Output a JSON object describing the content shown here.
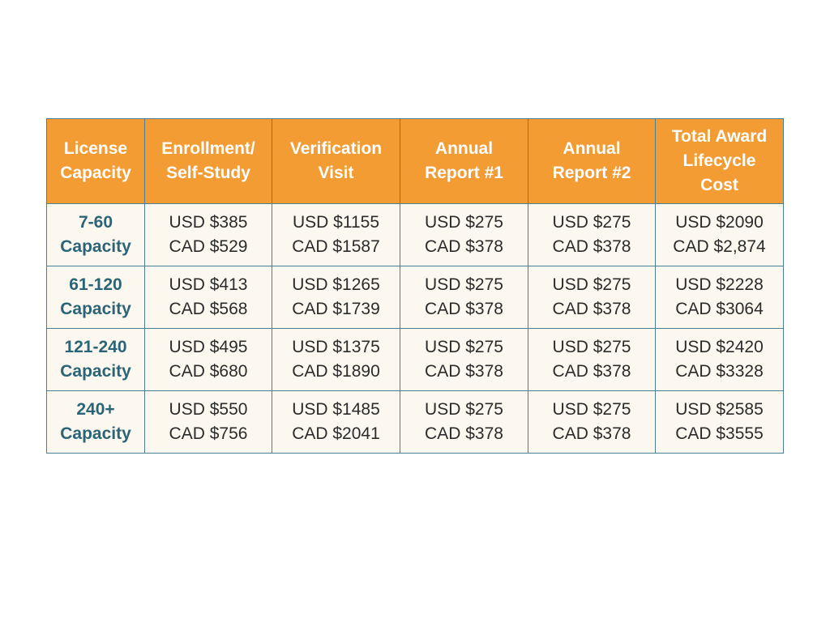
{
  "table": {
    "headers": [
      [
        "License",
        "Capacity"
      ],
      [
        "Enrollment/",
        "Self-Study"
      ],
      [
        "Verification",
        "Visit"
      ],
      [
        "Annual",
        "Report #1"
      ],
      [
        "Annual",
        "Report #2"
      ],
      [
        "Total Award",
        "Lifecycle",
        "Cost"
      ]
    ],
    "rows": [
      {
        "label": [
          "7-60",
          "Capacity"
        ],
        "cells": [
          [
            "USD $385",
            "CAD $529"
          ],
          [
            "USD $1155",
            "CAD $1587"
          ],
          [
            "USD $275",
            "CAD $378"
          ],
          [
            "USD $275",
            "CAD $378"
          ],
          [
            "USD $2090",
            "CAD $2,874"
          ]
        ]
      },
      {
        "label": [
          "61-120",
          "Capacity"
        ],
        "cells": [
          [
            "USD $413",
            "CAD $568"
          ],
          [
            "USD $1265",
            "CAD $1739"
          ],
          [
            "USD $275",
            "CAD $378"
          ],
          [
            "USD $275",
            "CAD $378"
          ],
          [
            "USD $2228",
            "CAD $3064"
          ]
        ]
      },
      {
        "label": [
          "121-240",
          "Capacity"
        ],
        "cells": [
          [
            "USD $495",
            "CAD $680"
          ],
          [
            "USD $1375",
            "CAD $1890"
          ],
          [
            "USD $275",
            "CAD $378"
          ],
          [
            "USD $275",
            "CAD $378"
          ],
          [
            "USD $2420",
            "CAD $3328"
          ]
        ]
      },
      {
        "label": [
          "240+",
          "Capacity"
        ],
        "cells": [
          [
            "USD $550",
            "CAD $756"
          ],
          [
            "USD $1485",
            "CAD $2041"
          ],
          [
            "USD $275",
            "CAD $378"
          ],
          [
            "USD $275",
            "CAD $378"
          ],
          [
            "USD $2585",
            "CAD $3555"
          ]
        ]
      }
    ]
  },
  "colors": {
    "header_bg": "#f39c34",
    "header_text": "#ffffff",
    "cell_bg": "#fdf8ef",
    "label_text": "#2a6478",
    "border": "#4a7f95"
  }
}
